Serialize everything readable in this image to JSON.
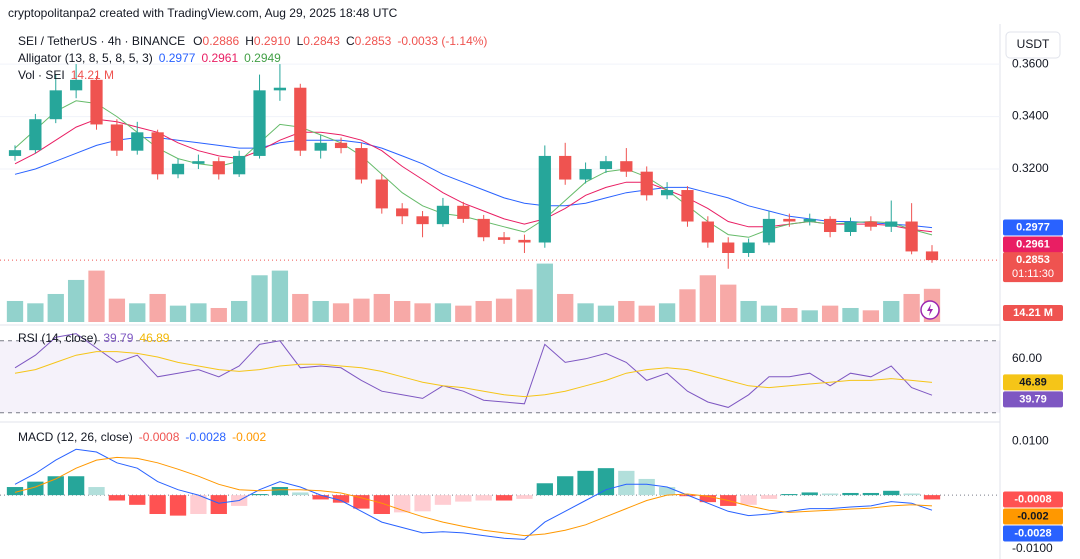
{
  "header": "cryptopolitanpa2 created with TradingView.com, Aug 29, 2025 18:48 UTC",
  "chart_data": [
    {
      "type": "candlestick",
      "legend": {
        "symbol": "SEI / TetherUS · 4h · BINANCE",
        "ohlc": [
          {
            "letter": "O",
            "value": 0.2886
          },
          {
            "letter": "H",
            "value": {
              "value": 0.291,
              "label": "0.2910"
            }
          },
          {
            "letter": "L",
            "value": 0.2843
          },
          {
            "letter": "C",
            "value": 0.2853
          }
        ],
        "change": {
          "value": -0.0033,
          "label": "-0.0033 (-1.14%)"
        },
        "indicator": "Alligator (13, 8, 5, 8, 5, 3)",
        "volume": "Vol · SEI"
      },
      "currency": "USDT",
      "countdown": "01:11:30",
      "up_color": "#26a69a",
      "down_color": "#ef5350",
      "grid": true,
      "ylim": [
        0.2617,
        0.373
      ],
      "yticks": [
        {
          "value": 0.36,
          "label": "0.3600"
        },
        {
          "value": 0.34,
          "label": "0.3400"
        },
        {
          "value": 0.32,
          "label": "0.3200"
        }
      ],
      "open": [
        0.325,
        0.3272,
        0.339,
        0.35,
        0.354,
        0.337,
        0.327,
        0.334,
        0.318,
        0.322,
        0.323,
        0.318,
        0.325,
        0.35,
        0.351,
        0.327,
        0.33,
        0.328,
        0.316,
        0.305,
        0.302,
        0.299,
        0.306,
        0.301,
        0.294,
        0.293,
        0.292,
        0.325,
        0.316,
        0.32,
        0.323,
        0.319,
        0.31,
        0.312,
        0.3,
        0.292,
        0.288,
        0.292,
        0.301,
        0.3,
        0.301,
        0.296,
        0.3,
        0.298,
        0.3,
        0.2886
      ],
      "high": [
        0.329,
        0.341,
        0.356,
        0.36,
        0.3555,
        0.339,
        0.338,
        0.335,
        0.324,
        0.3255,
        0.3245,
        0.327,
        0.356,
        0.36,
        0.3525,
        0.333,
        0.332,
        0.33,
        0.318,
        0.307,
        0.304,
        0.309,
        0.3075,
        0.3025,
        0.296,
        0.295,
        0.329,
        0.33,
        0.3225,
        0.325,
        0.328,
        0.321,
        0.315,
        0.3135,
        0.302,
        0.294,
        0.2935,
        0.304,
        0.303,
        0.303,
        0.302,
        0.3015,
        0.302,
        0.308,
        0.307,
        0.291
      ],
      "low": [
        0.3232,
        0.326,
        0.3375,
        0.347,
        0.335,
        0.325,
        0.3255,
        0.316,
        0.3165,
        0.32,
        0.316,
        0.317,
        0.324,
        0.346,
        0.325,
        0.324,
        0.326,
        0.3145,
        0.303,
        0.299,
        0.294,
        0.298,
        0.2995,
        0.2925,
        0.2915,
        0.288,
        0.29,
        0.314,
        0.3145,
        0.3185,
        0.317,
        0.308,
        0.3085,
        0.298,
        0.29,
        0.282,
        0.2865,
        0.291,
        0.298,
        0.2985,
        0.294,
        0.2945,
        0.2965,
        0.296,
        0.2875,
        0.2843
      ],
      "close": [
        0.3272,
        0.339,
        0.35,
        0.354,
        0.337,
        0.327,
        0.334,
        0.318,
        0.322,
        0.323,
        0.318,
        0.325,
        0.35,
        0.351,
        0.327,
        0.33,
        0.328,
        0.316,
        0.305,
        0.302,
        0.299,
        0.306,
        0.301,
        0.294,
        0.293,
        0.292,
        0.325,
        0.316,
        0.32,
        0.323,
        0.319,
        0.31,
        0.312,
        0.3,
        0.292,
        0.288,
        0.292,
        0.301,
        0.3,
        0.301,
        0.296,
        0.3,
        0.298,
        0.3,
        0.2886,
        0.2853
      ],
      "series": [
        {
          "color": "#2962ff",
          "values": [
            0.318,
            0.32,
            0.323,
            0.326,
            0.329,
            0.331,
            0.332,
            0.332,
            0.331,
            0.33,
            0.329,
            0.328,
            0.328,
            0.33,
            0.331,
            0.331,
            0.331,
            0.33,
            0.328,
            0.325,
            0.322,
            0.318,
            0.315,
            0.312,
            0.309,
            0.307,
            0.306,
            0.306,
            0.307,
            0.309,
            0.311,
            0.312,
            0.313,
            0.313,
            0.311,
            0.309,
            0.306,
            0.304,
            0.302,
            0.301,
            0.3,
            0.3,
            0.2995,
            0.299,
            0.2985,
            0.2977
          ]
        },
        {
          "color": "#e91e63",
          "values": [
            0.322,
            0.326,
            0.331,
            0.336,
            0.339,
            0.338,
            0.336,
            0.334,
            0.33,
            0.327,
            0.325,
            0.324,
            0.327,
            0.331,
            0.334,
            0.334,
            0.333,
            0.331,
            0.327,
            0.321,
            0.316,
            0.311,
            0.307,
            0.304,
            0.301,
            0.299,
            0.301,
            0.305,
            0.31,
            0.313,
            0.315,
            0.315,
            0.312,
            0.309,
            0.305,
            0.3,
            0.298,
            0.298,
            0.299,
            0.3,
            0.299,
            0.299,
            0.299,
            0.2985,
            0.297,
            0.2961
          ]
        },
        {
          "color": "#66bb6a",
          "values": [
            0.328,
            0.335,
            0.342,
            0.346,
            0.345,
            0.34,
            0.334,
            0.328,
            0.324,
            0.322,
            0.321,
            0.323,
            0.33,
            0.337,
            0.336,
            0.333,
            0.33,
            0.325,
            0.318,
            0.311,
            0.306,
            0.303,
            0.302,
            0.3,
            0.298,
            0.296,
            0.301,
            0.308,
            0.315,
            0.319,
            0.32,
            0.317,
            0.312,
            0.306,
            0.3,
            0.295,
            0.294,
            0.297,
            0.299,
            0.3,
            0.299,
            0.2995,
            0.3,
            0.2995,
            0.297,
            0.2949
          ]
        }
      ],
      "volume": [
        9,
        8,
        12,
        18,
        22,
        10,
        8,
        12,
        7,
        8,
        6,
        9,
        20,
        22,
        12,
        9,
        8,
        10,
        12,
        9,
        8,
        8,
        7,
        9,
        10,
        14,
        25,
        12,
        8,
        7,
        9,
        7,
        8,
        14,
        20,
        16,
        9,
        7,
        6,
        5,
        7,
        6,
        5,
        9,
        12,
        14.21
      ],
      "volume_label": "14.21 M",
      "volume_ylim": [
        0,
        125
      ]
    },
    {
      "type": "line",
      "title": "RSI (14, close)",
      "ylim": [
        26,
        76
      ],
      "yticks": [
        {
          "value": 60,
          "label": "60.00"
        }
      ],
      "bands": [
        70,
        30
      ],
      "band_color": "#7e57c2",
      "series": [
        {
          "color": "#7e57c2",
          "label_color": "#ffffff",
          "values": [
            55,
            62,
            72,
            74,
            66,
            58,
            62,
            50,
            52,
            54,
            50,
            56,
            68,
            70,
            55,
            56,
            55,
            48,
            42,
            40,
            38,
            45,
            42,
            37,
            36,
            35,
            68,
            58,
            60,
            63,
            58,
            48,
            52,
            42,
            36,
            33,
            40,
            50,
            50,
            52,
            45,
            52,
            50,
            56,
            44,
            39.79
          ]
        },
        {
          "color": "#f5c518",
          "label_color": "#131722",
          "values": [
            52,
            54,
            58,
            62,
            64,
            64,
            63,
            61,
            58,
            56,
            54,
            53,
            54,
            56,
            57,
            57,
            56,
            55,
            53,
            50,
            47,
            45,
            44,
            42,
            40,
            39,
            40,
            42,
            45,
            48,
            52,
            54,
            55,
            54,
            51,
            48,
            45,
            44,
            45,
            46,
            47,
            48,
            48,
            49,
            48,
            46.89
          ]
        }
      ]
    },
    {
      "type": "macd",
      "title": "MACD (12, 26, close)",
      "ylim": [
        -0.0111,
        0.013
      ],
      "yticks": [
        {
          "value": 0.01,
          "label": "0.0100"
        },
        {
          "value": -0.01,
          "label": "-0.0100"
        }
      ],
      "histogram": {
        "colors": [
          "#26a69a",
          "#b2dfdb",
          "#ff5252",
          "#ffcdd2"
        ],
        "values": [
          0.0015,
          0.0025,
          0.0035,
          0.0035,
          0.0015,
          -0.001,
          -0.0018,
          -0.0035,
          -0.0038,
          -0.0035,
          -0.0035,
          -0.002,
          0.0002,
          0.0015,
          0.0005,
          -0.0008,
          -0.0014,
          -0.0025,
          -0.0035,
          -0.0032,
          -0.003,
          -0.0018,
          -0.0012,
          -0.001,
          -0.001,
          -0.0007,
          0.0022,
          0.0035,
          0.0045,
          0.005,
          0.0045,
          0.003,
          0.0015,
          -0.0002,
          -0.0013,
          -0.002,
          -0.0018,
          -0.0007,
          0.0002,
          0.0005,
          0.0003,
          0.0004,
          0.0004,
          0.0008,
          0.0003,
          -0.0008
        ]
      },
      "series": [
        {
          "color": "#2962ff",
          "label_color": "#ffffff",
          "values": [
            0.002,
            0.004,
            0.0065,
            0.0085,
            0.008,
            0.006,
            0.005,
            0.0025,
            0.001,
            0.0,
            -0.0015,
            -0.001,
            0.001,
            0.0025,
            0.0015,
            0.0,
            -0.001,
            -0.003,
            -0.005,
            -0.006,
            -0.007,
            -0.0068,
            -0.007,
            -0.0075,
            -0.008,
            -0.0082,
            -0.005,
            -0.003,
            -0.001,
            0.001,
            0.002,
            0.002,
            0.0015,
            0.0,
            -0.0015,
            -0.003,
            -0.0038,
            -0.0035,
            -0.003,
            -0.0025,
            -0.0025,
            -0.0022,
            -0.002,
            -0.0012,
            -0.0015,
            -0.0028
          ]
        },
        {
          "color": "#ff9800",
          "label_color": "#131722",
          "values": [
            0.0005,
            0.0015,
            0.003,
            0.005,
            0.0065,
            0.007,
            0.0068,
            0.006,
            0.0048,
            0.0035,
            0.002,
            0.001,
            0.0008,
            0.001,
            0.001,
            0.0008,
            0.0004,
            -0.0005,
            -0.0015,
            -0.0028,
            -0.004,
            -0.005,
            -0.0058,
            -0.0065,
            -0.007,
            -0.0075,
            -0.0072,
            -0.0065,
            -0.0055,
            -0.004,
            -0.0025,
            -0.001,
            0.0,
            0.0002,
            -0.0002,
            -0.001,
            -0.002,
            -0.0028,
            -0.0032,
            -0.003,
            -0.0028,
            -0.0026,
            -0.0024,
            -0.002,
            -0.0018,
            -0.002
          ]
        }
      ]
    }
  ]
}
